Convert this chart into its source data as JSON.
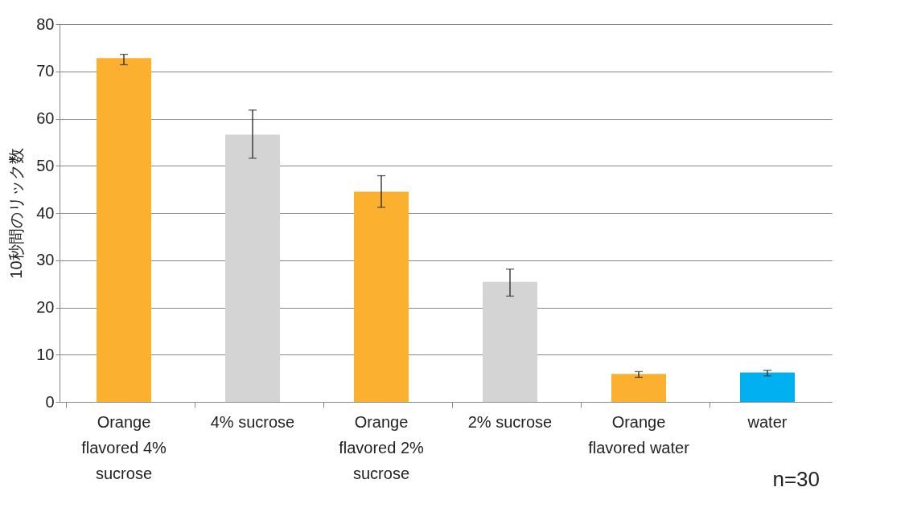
{
  "chart_data": {
    "type": "bar",
    "ylabel": "10秒間のリック数",
    "categories": [
      "Orange\nflavored 4%\nsucrose",
      "4% sucrose",
      "Orange\nflavored 2%\nsucrose",
      "2% sucrose",
      "Orange\nflavored water",
      "water"
    ],
    "values": [
      72.8,
      56.6,
      44.5,
      25.4,
      5.9,
      6.2
    ],
    "colors": [
      "#fbb12f",
      "#d4d4d4",
      "#fbb12f",
      "#d4d4d4",
      "#fbb12f",
      "#00b0f0"
    ],
    "errors": [
      [
        71.4,
        73.6
      ],
      [
        51.6,
        61.8
      ],
      [
        41.2,
        47.9
      ],
      [
        22.4,
        28.1
      ],
      [
        5.2,
        6.4
      ],
      [
        5.5,
        6.7
      ]
    ],
    "ylim": [
      0,
      80
    ],
    "yticks": [
      0,
      10,
      20,
      30,
      40,
      50,
      60,
      70,
      80
    ],
    "grid": "y",
    "annotations": [
      "n=30"
    ]
  }
}
